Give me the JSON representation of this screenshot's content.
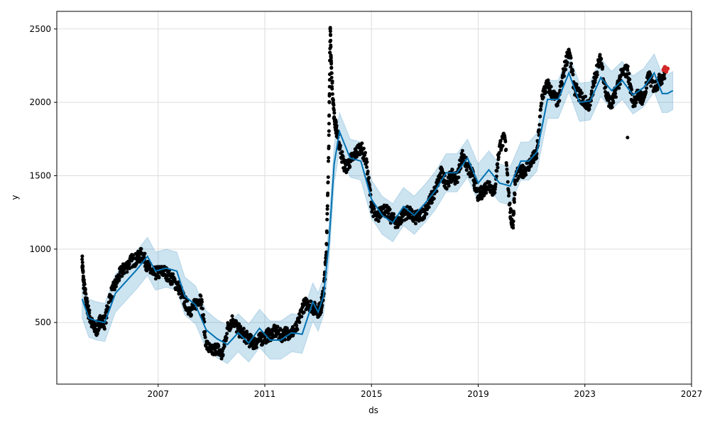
{
  "chart_data": {
    "type": "line",
    "xlabel": "ds",
    "ylabel": "y",
    "xlim": [
      2003.2,
      2027.0
    ],
    "ylim": [
      80,
      2620
    ],
    "x_ticks": [
      2007,
      2011,
      2015,
      2019,
      2023,
      2027
    ],
    "y_ticks": [
      500,
      1000,
      1500,
      2000,
      2500
    ],
    "grid": true,
    "colors": {
      "observed": "#000000",
      "forecast_line": "#0072B2",
      "interval_fill": "#0072B2",
      "recent": "#d62728"
    },
    "forecast": {
      "x": [
        2004.15,
        2004.4,
        2004.7,
        2005.0,
        2005.4,
        2005.8,
        2006.2,
        2006.6,
        2006.9,
        2007.3,
        2007.7,
        2008.0,
        2008.4,
        2008.8,
        2009.2,
        2009.6,
        2010.0,
        2010.4,
        2010.8,
        2011.2,
        2011.6,
        2012.0,
        2012.4,
        2012.8,
        2013.0,
        2013.2,
        2013.4,
        2013.6,
        2013.8,
        2014.2,
        2014.6,
        2015.0,
        2015.4,
        2015.8,
        2016.2,
        2016.6,
        2017.0,
        2017.4,
        2017.8,
        2018.2,
        2018.6,
        2019.0,
        2019.4,
        2019.8,
        2020.2,
        2020.6,
        2020.9,
        2021.2,
        2021.6,
        2022.0,
        2022.4,
        2022.8,
        2023.2,
        2023.6,
        2024.0,
        2024.4,
        2024.8,
        2025.2,
        2025.6,
        2025.9,
        2026.1,
        2026.3
      ],
      "yhat": [
        660,
        530,
        510,
        500,
        700,
        780,
        860,
        950,
        850,
        870,
        850,
        680,
        620,
        450,
        390,
        350,
        430,
        360,
        460,
        380,
        380,
        430,
        420,
        640,
        570,
        680,
        1030,
        1580,
        1800,
        1620,
        1600,
        1340,
        1230,
        1180,
        1290,
        1230,
        1310,
        1400,
        1520,
        1520,
        1620,
        1450,
        1540,
        1450,
        1430,
        1600,
        1600,
        1660,
        2020,
        2020,
        2200,
        2000,
        2010,
        2170,
        2080,
        2150,
        2050,
        2100,
        2200,
        2060,
        2060,
        2080
      ],
      "interval_halfwidth": 130
    },
    "observed_points": {
      "x": [
        2004.15,
        2004.2,
        2004.3,
        2004.4,
        2004.55,
        2004.7,
        2004.85,
        2005.0,
        2005.2,
        2005.4,
        2005.6,
        2005.8,
        2006.0,
        2006.2,
        2006.4,
        2006.6,
        2006.8,
        2007.0,
        2007.2,
        2007.4,
        2007.6,
        2007.8,
        2008.0,
        2008.2,
        2008.4,
        2008.6,
        2008.8,
        2009.0,
        2009.2,
        2009.4,
        2009.6,
        2009.8,
        2010.0,
        2010.2,
        2010.4,
        2010.6,
        2010.8,
        2011.0,
        2011.2,
        2011.4,
        2011.6,
        2011.8,
        2012.0,
        2012.2,
        2012.4,
        2012.6,
        2012.8,
        2013.0,
        2013.1,
        2013.2,
        2013.3,
        2013.4,
        2013.45,
        2013.5,
        2013.6,
        2013.7,
        2013.8,
        2014.0,
        2014.2,
        2014.4,
        2014.6,
        2014.8,
        2015.0,
        2015.2,
        2015.4,
        2015.6,
        2015.8,
        2016.0,
        2016.2,
        2016.4,
        2016.6,
        2016.8,
        2017.0,
        2017.2,
        2017.4,
        2017.6,
        2017.8,
        2018.0,
        2018.2,
        2018.4,
        2018.6,
        2018.8,
        2019.0,
        2019.2,
        2019.4,
        2019.6,
        2019.8,
        2020.0,
        2020.2,
        2020.3,
        2020.4,
        2020.6,
        2020.8,
        2021.0,
        2021.2,
        2021.4,
        2021.6,
        2021.8,
        2022.0,
        2022.2,
        2022.4,
        2022.6,
        2022.8,
        2023.0,
        2023.2,
        2023.4,
        2023.6,
        2023.8,
        2024.0,
        2024.2,
        2024.4,
        2024.6,
        2024.8,
        2025.0,
        2025.2,
        2025.4,
        2025.6,
        2025.8,
        2026.0
      ],
      "y": [
        930,
        780,
        650,
        560,
        470,
        450,
        520,
        500,
        680,
        760,
        840,
        880,
        920,
        930,
        970,
        880,
        830,
        840,
        850,
        820,
        780,
        730,
        640,
        580,
        620,
        680,
        350,
        300,
        330,
        270,
        460,
        520,
        450,
        420,
        380,
        360,
        380,
        400,
        420,
        440,
        410,
        430,
        430,
        460,
        600,
        640,
        600,
        580,
        600,
        700,
        950,
        1700,
        2500,
        2200,
        1900,
        1800,
        1700,
        1550,
        1600,
        1650,
        1700,
        1600,
        1300,
        1200,
        1280,
        1250,
        1200,
        1180,
        1240,
        1250,
        1210,
        1220,
        1260,
        1330,
        1400,
        1520,
        1450,
        1500,
        1480,
        1640,
        1560,
        1500,
        1360,
        1400,
        1450,
        1380,
        1700,
        1760,
        1250,
        1150,
        1500,
        1520,
        1550,
        1600,
        1650,
        2050,
        2120,
        2050,
        2000,
        2200,
        2360,
        2100,
        2050,
        2000,
        1980,
        2200,
        2300,
        2050,
        1980,
        2100,
        2200,
        2220,
        2000,
        2050,
        2020,
        2180,
        2100,
        2150,
        2200
      ],
      "outlier": {
        "x": 2024.6,
        "y": 1760
      }
    },
    "recent_points": {
      "x": [
        2025.95,
        2026.0,
        2026.05,
        2026.1
      ],
      "y": [
        2220,
        2240,
        2210,
        2230
      ]
    }
  }
}
